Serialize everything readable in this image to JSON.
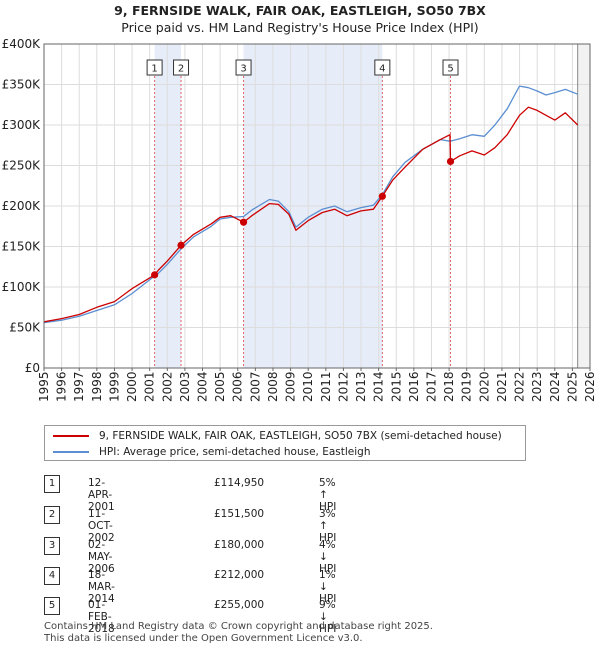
{
  "title_line1": "9, FERNSIDE WALK, FAIR OAK, EASTLEIGH, SO50 7BX",
  "title_line2": "Price paid vs. HM Land Registry's House Price Index (HPI)",
  "chart_data": {
    "type": "line",
    "title": "Price paid vs. HM Land Registry's House Price Index (HPI)",
    "xlim": [
      1995,
      2026
    ],
    "ylim": [
      0,
      400000
    ],
    "y_ticks": [
      0,
      50000,
      100000,
      150000,
      200000,
      250000,
      300000,
      350000,
      400000
    ],
    "y_tick_labels": [
      "£0",
      "£50K",
      "£100K",
      "£150K",
      "£200K",
      "£250K",
      "£300K",
      "£350K",
      "£400K"
    ],
    "x_ticks": [
      "1995",
      "1996",
      "1997",
      "1998",
      "1999",
      "2000",
      "2001",
      "2002",
      "2003",
      "2004",
      "2005",
      "2006",
      "2007",
      "2008",
      "2009",
      "2010",
      "2011",
      "2012",
      "2013",
      "2014",
      "2015",
      "2016",
      "2017",
      "2018",
      "2019",
      "2020",
      "2021",
      "2022",
      "2023",
      "2024",
      "2025",
      "2026"
    ],
    "colors": {
      "property": "#cc0000",
      "hpi": "#5b8fd1",
      "shade": "#e6ecf8",
      "grid": "#dddddd",
      "vline": "#e06666"
    },
    "series": [
      {
        "name": "9, FERNSIDE WALK, FAIR OAK, EASTLEIGH, SO50 7BX (semi-detached house)",
        "x": [
          1995.0,
          1996.0,
          1997.0,
          1998.0,
          1999.0,
          2000.0,
          2001.28,
          2001.5,
          2002.0,
          2002.78,
          2003.5,
          2004.5,
          2005.0,
          2005.6,
          2006.33,
          2006.8,
          2007.8,
          2008.3,
          2008.9,
          2009.3,
          2010.0,
          2010.8,
          2011.5,
          2012.2,
          2013.0,
          2013.7,
          2014.21,
          2014.8,
          2015.5,
          2016.5,
          2017.5,
          2018.05,
          2018.08,
          2018.6,
          2019.3,
          2020.0,
          2020.6,
          2021.3,
          2022.0,
          2022.5,
          2023.0,
          2023.5,
          2024.0,
          2024.6,
          2025.3
        ],
        "values": [
          57000,
          61000,
          66000,
          75000,
          82000,
          98000,
          114950,
          121000,
          132000,
          151500,
          165000,
          178000,
          186000,
          188000,
          180000,
          188000,
          203000,
          202000,
          190000,
          170000,
          182000,
          192000,
          196000,
          188000,
          194000,
          196000,
          212000,
          232000,
          248000,
          270000,
          282000,
          288000,
          255000,
          262000,
          268000,
          263000,
          272000,
          288000,
          312000,
          322000,
          318000,
          312000,
          306000,
          315000,
          300000
        ]
      },
      {
        "name": "HPI: Average price, semi-detached house, Eastleigh",
        "x": [
          1995.0,
          1996.0,
          1997.0,
          1998.0,
          1999.0,
          2000.0,
          2001.0,
          2001.5,
          2002.0,
          2002.78,
          2003.5,
          2004.5,
          2005.0,
          2005.6,
          2006.33,
          2006.8,
          2007.8,
          2008.3,
          2008.9,
          2009.3,
          2010.0,
          2010.8,
          2011.5,
          2012.2,
          2013.0,
          2013.7,
          2014.21,
          2014.8,
          2015.5,
          2016.5,
          2017.5,
          2018.05,
          2018.6,
          2019.3,
          2020.0,
          2020.6,
          2021.3,
          2022.0,
          2022.5,
          2023.0,
          2023.5,
          2024.0,
          2024.6,
          2025.3
        ],
        "values": [
          56000,
          59000,
          64000,
          71000,
          78000,
          92000,
          109000,
          117000,
          128000,
          147000,
          162000,
          175000,
          184000,
          186000,
          187000,
          195000,
          208000,
          206000,
          193000,
          174000,
          186000,
          196000,
          200000,
          193000,
          198000,
          201000,
          214000,
          236000,
          254000,
          270000,
          282000,
          280000,
          283000,
          288000,
          286000,
          300000,
          320000,
          348000,
          346000,
          342000,
          337000,
          340000,
          344000,
          338000
        ]
      }
    ],
    "shaded_ranges": [
      [
        2001.28,
        2002.78
      ],
      [
        2006.33,
        2014.21
      ]
    ],
    "sales": [
      {
        "num": "1",
        "x": 2001.28,
        "value": 114950
      },
      {
        "num": "2",
        "x": 2002.78,
        "value": 151500
      },
      {
        "num": "3",
        "x": 2006.33,
        "value": 180000
      },
      {
        "num": "4",
        "x": 2014.21,
        "value": 212000
      },
      {
        "num": "5",
        "x": 2018.08,
        "value": 255000
      }
    ],
    "end_marker_x": 2025.3
  },
  "legend": {
    "property_label": "9, FERNSIDE WALK, FAIR OAK, EASTLEIGH, SO50 7BX (semi-detached house)",
    "hpi_label": "HPI: Average price, semi-detached house, Eastleigh"
  },
  "sales_table": [
    {
      "num": "1",
      "date": "12-APR-2001",
      "price": "£114,950",
      "hpi": "5% ↑ HPI"
    },
    {
      "num": "2",
      "date": "11-OCT-2002",
      "price": "£151,500",
      "hpi": "3% ↑ HPI"
    },
    {
      "num": "3",
      "date": "02-MAY-2006",
      "price": "£180,000",
      "hpi": "4% ↓ HPI"
    },
    {
      "num": "4",
      "date": "18-MAR-2014",
      "price": "£212,000",
      "hpi": "1% ↓ HPI"
    },
    {
      "num": "5",
      "date": "01-FEB-2018",
      "price": "£255,000",
      "hpi": "9% ↓ HPI"
    }
  ],
  "footer_line1": "Contains HM Land Registry data © Crown copyright and database right 2025.",
  "footer_line2": "This data is licensed under the Open Government Licence v3.0."
}
